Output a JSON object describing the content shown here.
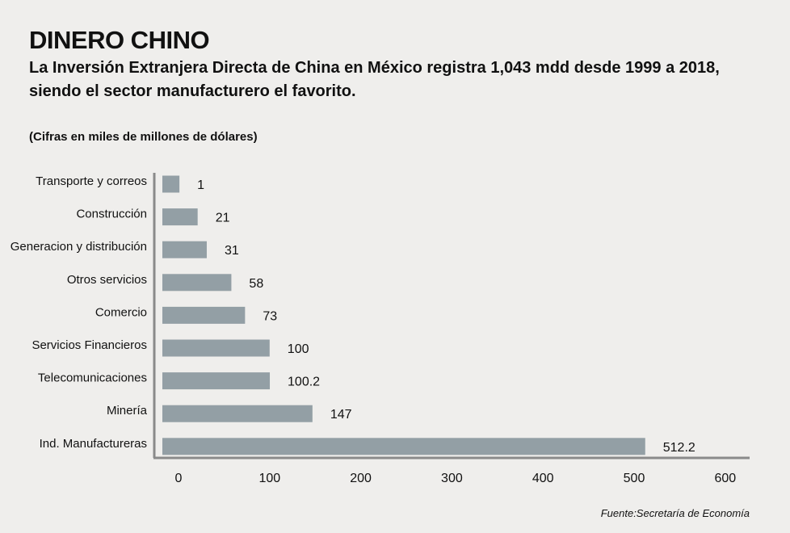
{
  "header": {
    "title": "DINERO CHINO",
    "subtitle": "La Inversión Extranjera Directa de China en México registra  1,043 mdd desde 1999 a 2018, siendo el sector manufacturero el favorito.",
    "units": "(Cifras en miles de millones de dólares)"
  },
  "footer": {
    "source": "Fuente:Secretaría de Economía"
  },
  "colors": {
    "bar": "#939fa5",
    "axis": "#8a8a8a",
    "background": "#efeeec"
  },
  "chart_data": {
    "type": "bar",
    "orientation": "horizontal",
    "categories": [
      "Transporte y correos",
      "Construcción",
      "Generacion y distribución",
      "Otros servicios",
      "Comercio",
      "Servicios Financieros",
      "Telecomunicaciones",
      "Minería",
      "Ind. Manufactureras"
    ],
    "values": [
      1,
      21,
      31,
      58,
      73,
      100,
      100.2,
      147,
      512.2
    ],
    "value_labels": [
      "1",
      "21",
      "31",
      "58",
      "73",
      "100",
      "100.2",
      "147",
      "512.2"
    ],
    "x_ticks": [
      "0",
      "100",
      "200",
      "300",
      "400",
      "500",
      "600"
    ],
    "xlim": [
      0,
      600
    ],
    "grid": false,
    "legend": "none"
  }
}
